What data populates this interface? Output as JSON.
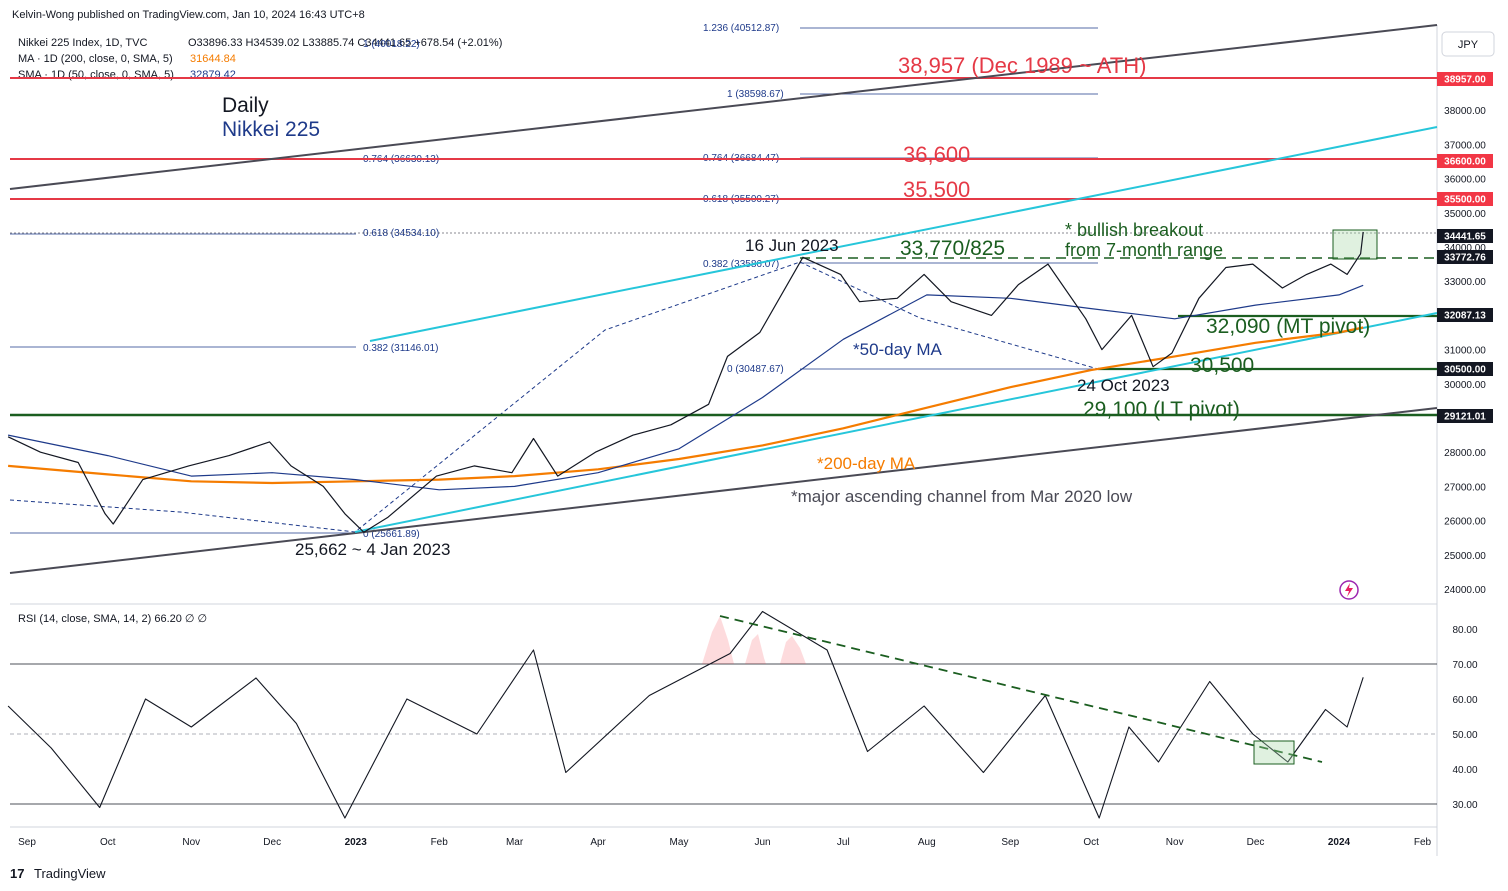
{
  "header": {
    "publisher": "Kelvin-Wong published on TradingView.com, Jan 10, 2024 16:43 UTC+8",
    "symbol_line": "Nikkei 225 Index, 1D, TVC",
    "ohlc": "O33896.33 H34539.02 L33885.74 C34441.65 +678.54 (+2.01%)",
    "ma200_label": "MA · 1D (200, close, 0, SMA, 5)",
    "ma200_value": "31644.84",
    "sma50_label": "SMA · 1D (50, close, 0, SMA, 5)",
    "sma50_value": "32879.42",
    "currency": "JPY"
  },
  "titles": {
    "daily": "Daily",
    "index": "Nikkei 225"
  },
  "colors": {
    "ath_red": "#e53946",
    "green": "#1b5e20",
    "navy": "#1e3a8a",
    "orange": "#f57c00",
    "cyan": "#26c6da",
    "channel": "#4a4a55",
    "tag_red": "#f23645",
    "tag_dark": "#131722"
  },
  "annotations": {
    "ath": "38,957 (Dec 1989 ~ ATH)",
    "r1": "36,600",
    "r2": "35,500",
    "breakout_1": "* bullish breakout",
    "breakout_2": "from 7-month range",
    "jun_high": "16 Jun 2023",
    "range_top": "33,770/825",
    "mt_pivot": "32,090 (MT pivot)",
    "s_30500": "30,500",
    "oct_low": "24 Oct 2023",
    "lt_pivot": "29,100 (LT pivot)",
    "ma50_note": "*50-day MA",
    "ma200_note": "*200-day MA",
    "channel_note": "*major ascending channel from Mar 2020 low",
    "jan_low": "25,662 ~ 4 Jan 2023"
  },
  "fib_labels": [
    {
      "text": "1.236 (40512.87)"
    },
    {
      "text": "1 (40018.22)"
    },
    {
      "text": "1 (38598.67)"
    },
    {
      "text": "0.764 (36630.13)"
    },
    {
      "text": "0.764 (36684.47)"
    },
    {
      "text": "0.618 (35500.27)"
    },
    {
      "text": "0.618 (34534.10)"
    },
    {
      "text": "0.382 (33586.07)"
    },
    {
      "text": "0.382 (31146.01)"
    },
    {
      "text": "0 (30487.67)"
    },
    {
      "text": "0 (25661.89)"
    }
  ],
  "price_tags": [
    "38957.00",
    "36600.00",
    "35500.00",
    "34441.65",
    "33772.76",
    "32087.13",
    "30500.00",
    "29121.01"
  ],
  "rsi_header": "RSI (14, close, SMA, 14, 2) 66.20 ∅ ∅",
  "branding": "TradingView",
  "chart_data": [
    {
      "type": "line",
      "title": "Nikkei 225",
      "ylim": [
        23500,
        40900
      ],
      "y_ticks": [
        24000,
        25000,
        26000,
        27000,
        28000,
        29000,
        30000,
        31000,
        32000,
        33000,
        34000,
        35000,
        36000,
        37000,
        38000
      ],
      "y_tick_labels": [
        "24000.00",
        "25000.00",
        "26000.00",
        "27000.00",
        "28000.00",
        "29000.00",
        "30000.00",
        "31000.00",
        "32000.00",
        "33000.00",
        "34000.00",
        "35000.00",
        "36000.00",
        "37000.00",
        "38000.00"
      ],
      "x_labels": [
        "Sep",
        "Oct",
        "Nov",
        "Dec",
        "2023",
        "Feb",
        "Mar",
        "Apr",
        "May",
        "Jun",
        "Jul",
        "Aug",
        "Sep",
        "Oct",
        "Nov",
        "Dec",
        "2024",
        "Feb"
      ],
      "x_label_dates": [
        "2022-09-01",
        "2022-10-01",
        "2022-11-01",
        "2022-12-01",
        "2023-01-01",
        "2023-02-01",
        "2023-03-01",
        "2023-04-01",
        "2023-05-01",
        "2023-06-01",
        "2023-07-01",
        "2023-08-01",
        "2023-09-01",
        "2023-10-01",
        "2023-11-01",
        "2023-12-01",
        "2024-01-01",
        "2024-02-01"
      ],
      "series": [
        {
          "values": [
            [
              "2022-08-25",
              28450
            ],
            [
              "2022-09-06",
              28000
            ],
            [
              "2022-09-20",
              27700
            ],
            [
              "2022-09-30",
              26200
            ],
            [
              "2022-10-03",
              25900
            ],
            [
              "2022-10-14",
              27200
            ],
            [
              "2022-10-31",
              27600
            ],
            [
              "2022-11-15",
              27900
            ],
            [
              "2022-11-30",
              28300
            ],
            [
              "2022-12-08",
              27600
            ],
            [
              "2022-12-20",
              27000
            ],
            [
              "2022-12-28",
              26200
            ],
            [
              "2023-01-04",
              25662
            ],
            [
              "2023-01-13",
              26100
            ],
            [
              "2023-01-31",
              27300
            ],
            [
              "2023-02-14",
              27600
            ],
            [
              "2023-02-28",
              27400
            ],
            [
              "2023-03-08",
              28400
            ],
            [
              "2023-03-17",
              27300
            ],
            [
              "2023-03-31",
              28000
            ],
            [
              "2023-04-14",
              28500
            ],
            [
              "2023-04-28",
              28800
            ],
            [
              "2023-05-12",
              29400
            ],
            [
              "2023-05-19",
              30800
            ],
            [
              "2023-05-31",
              31500
            ],
            [
              "2023-06-16",
              33700
            ],
            [
              "2023-06-30",
              33200
            ],
            [
              "2023-07-07",
              32400
            ],
            [
              "2023-07-21",
              32500
            ],
            [
              "2023-07-31",
              33200
            ],
            [
              "2023-08-10",
              32400
            ],
            [
              "2023-08-25",
              32000
            ],
            [
              "2023-09-04",
              32900
            ],
            [
              "2023-09-15",
              33500
            ],
            [
              "2023-09-29",
              31900
            ],
            [
              "2023-10-05",
              31000
            ],
            [
              "2023-10-16",
              32000
            ],
            [
              "2023-10-24",
              30500
            ],
            [
              "2023-10-31",
              30900
            ],
            [
              "2023-11-10",
              32500
            ],
            [
              "2023-11-20",
              33400
            ],
            [
              "2023-11-30",
              33500
            ],
            [
              "2023-12-11",
              32800
            ],
            [
              "2023-12-20",
              33200
            ],
            [
              "2023-12-29",
              33500
            ],
            [
              "2024-01-04",
              33200
            ],
            [
              "2024-01-09",
              33800
            ],
            [
              "2024-01-10",
              34441.65
            ]
          ]
        },
        {
          "name": "SMA · 1D (50, close, 0, SMA, 5)",
          "values": [
            [
              "2022-08-25",
              28500
            ],
            [
              "2022-10-01",
              27900
            ],
            [
              "2022-11-01",
              27300
            ],
            [
              "2022-12-01",
              27400
            ],
            [
              "2023-01-01",
              27200
            ],
            [
              "2023-02-01",
              26900
            ],
            [
              "2023-03-01",
              27000
            ],
            [
              "2023-04-01",
              27400
            ],
            [
              "2023-05-01",
              28100
            ],
            [
              "2023-06-01",
              29600
            ],
            [
              "2023-07-01",
              31300
            ],
            [
              "2023-08-01",
              32600
            ],
            [
              "2023-09-01",
              32500
            ],
            [
              "2023-10-01",
              32200
            ],
            [
              "2023-11-01",
              31900
            ],
            [
              "2023-12-01",
              32300
            ],
            [
              "2024-01-01",
              32600
            ],
            [
              "2024-01-10",
              32879.42
            ]
          ]
        },
        {
          "name": "MA · 1D (200, close, 0, SMA, 5)",
          "values": [
            [
              "2022-08-25",
              27600
            ],
            [
              "2022-10-01",
              27350
            ],
            [
              "2022-11-01",
              27150
            ],
            [
              "2022-12-01",
              27100
            ],
            [
              "2023-01-01",
              27150
            ],
            [
              "2023-02-01",
              27200
            ],
            [
              "2023-03-01",
              27300
            ],
            [
              "2023-04-01",
              27500
            ],
            [
              "2023-05-01",
              27800
            ],
            [
              "2023-06-01",
              28200
            ],
            [
              "2023-07-01",
              28700
            ],
            [
              "2023-08-01",
              29300
            ],
            [
              "2023-09-01",
              29900
            ],
            [
              "2023-10-01",
              30400
            ],
            [
              "2023-11-01",
              30800
            ],
            [
              "2023-12-01",
              31200
            ],
            [
              "2024-01-01",
              31500
            ],
            [
              "2024-01-10",
              31644.84
            ]
          ]
        }
      ],
      "horizontal_levels": [
        38957,
        36600,
        35500,
        33800,
        32090,
        30500,
        29121
      ],
      "grid": false
    },
    {
      "type": "line",
      "title": "RSI (14, close, SMA, 14, 2)",
      "ylim": [
        25,
        86
      ],
      "y_ticks": [
        30,
        40,
        50,
        60,
        70,
        80
      ],
      "y_tick_labels": [
        "30.00",
        "40.00",
        "50.00",
        "60.00",
        "70.00",
        "80.00"
      ],
      "bands": [
        30,
        50,
        70
      ],
      "series": [
        {
          "values": [
            [
              "2022-08-25",
              58
            ],
            [
              "2022-09-10",
              46
            ],
            [
              "2022-09-28",
              29
            ],
            [
              "2022-10-15",
              60
            ],
            [
              "2022-11-01",
              52
            ],
            [
              "2022-11-25",
              66
            ],
            [
              "2022-12-10",
              53
            ],
            [
              "2022-12-28",
              26
            ],
            [
              "2023-01-20",
              60
            ],
            [
              "2023-02-15",
              50
            ],
            [
              "2023-03-08",
              74
            ],
            [
              "2023-03-20",
              39
            ],
            [
              "2023-04-20",
              61
            ],
            [
              "2023-05-20",
              73
            ],
            [
              "2023-06-01",
              85
            ],
            [
              "2023-06-25",
              74
            ],
            [
              "2023-07-10",
              45
            ],
            [
              "2023-07-31",
              58
            ],
            [
              "2023-08-22",
              39
            ],
            [
              "2023-09-14",
              61
            ],
            [
              "2023-10-04",
              26
            ],
            [
              "2023-10-15",
              52
            ],
            [
              "2023-10-26",
              42
            ],
            [
              "2023-11-14",
              65
            ],
            [
              "2023-11-30",
              50
            ],
            [
              "2023-12-13",
              42
            ],
            [
              "2023-12-27",
              57
            ],
            [
              "2024-01-04",
              52
            ],
            [
              "2024-01-10",
              66.2
            ]
          ]
        }
      ],
      "grid": false
    }
  ]
}
